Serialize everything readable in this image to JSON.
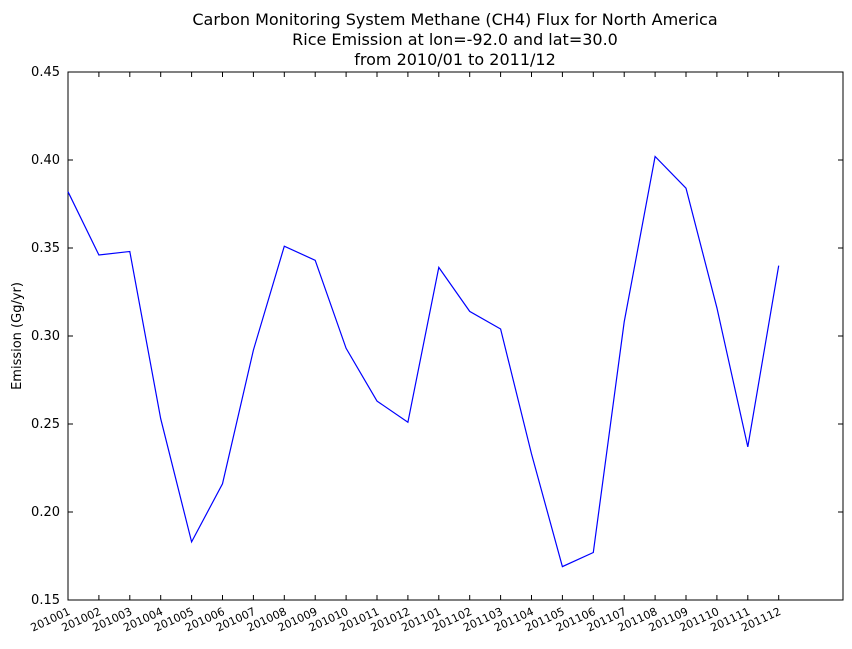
{
  "chart_data": {
    "type": "line",
    "title_lines": [
      "Carbon Monitoring System Methane (CH4) Flux for North America",
      "Rice Emission at lon=-92.0 and lat=30.0",
      "from 2010/01 to 2011/12"
    ],
    "xlabel": "",
    "ylabel": "Emission (Gg/yr)",
    "ylim": [
      0.15,
      0.45
    ],
    "yticks": [
      "0.15",
      "0.20",
      "0.25",
      "0.30",
      "0.35",
      "0.40",
      "0.45"
    ],
    "categories": [
      "201001",
      "201002",
      "201003",
      "201004",
      "201005",
      "201006",
      "201007",
      "201008",
      "201009",
      "201010",
      "201011",
      "201012",
      "201101",
      "201102",
      "201103",
      "201104",
      "201105",
      "201106",
      "201107",
      "201108",
      "201109",
      "201110",
      "201111",
      "201112"
    ],
    "series": [
      {
        "color": "#0000ff",
        "values": [
          0.382,
          0.346,
          0.348,
          0.253,
          0.183,
          0.216,
          0.292,
          0.351,
          0.343,
          0.293,
          0.263,
          0.251,
          0.339,
          0.314,
          0.304,
          0.233,
          0.169,
          0.177,
          0.308,
          0.402,
          0.384,
          0.316,
          0.237,
          0.34
        ]
      }
    ],
    "grid": false,
    "legend": "none"
  }
}
